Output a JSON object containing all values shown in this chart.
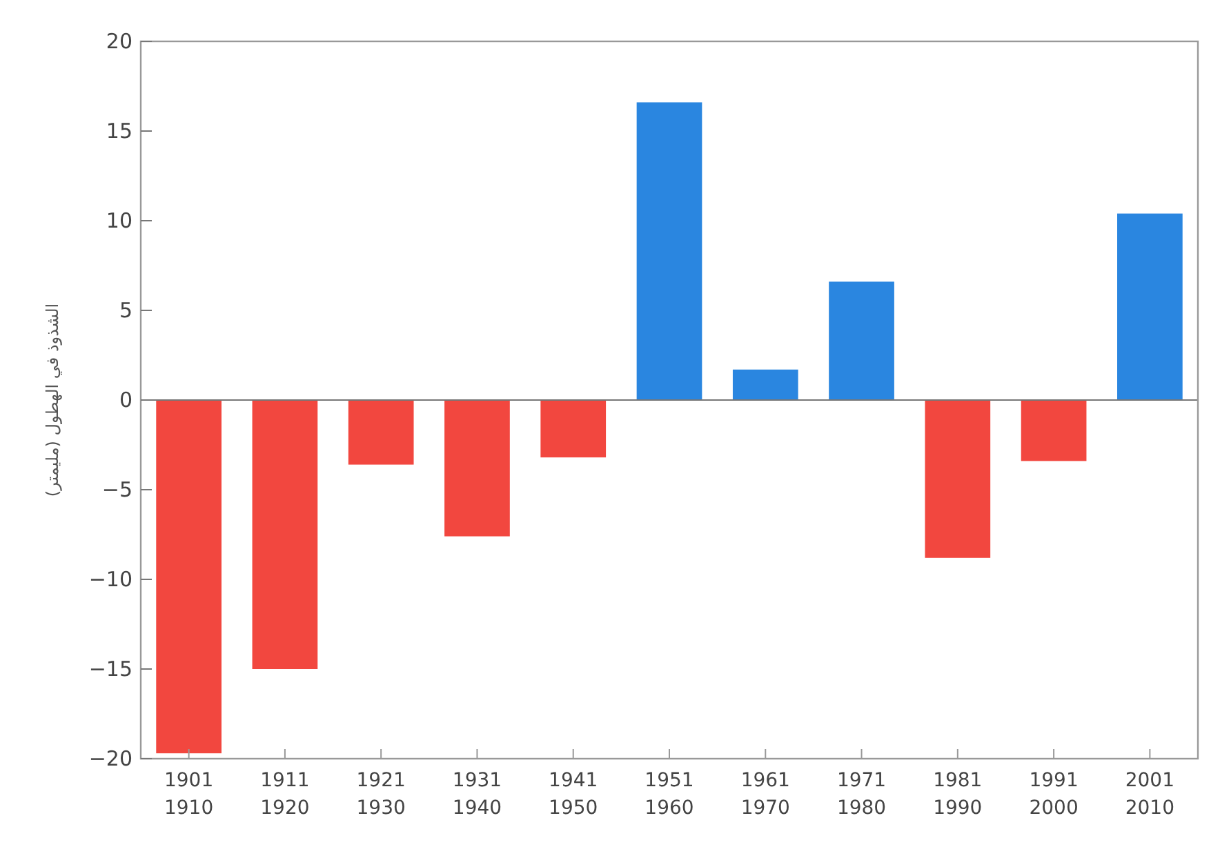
{
  "chart_data": {
    "type": "bar",
    "ylabel": "الشذوذ في الهطول (مليمتر)",
    "categories": [
      "1901\n1910",
      "1911\n1920",
      "1921\n1930",
      "1931\n1940",
      "1941\n1950",
      "1951\n1960",
      "1961\n1970",
      "1971\n1980",
      "1981\n1990",
      "1991\n2000",
      "2001\n2010"
    ],
    "values": [
      -19.7,
      -15,
      -3.6,
      -7.6,
      -3.2,
      16.6,
      1.7,
      6.6,
      -8.8,
      -3.4,
      10.4
    ],
    "colors": [
      "#f2473f",
      "#f2473f",
      "#f2473f",
      "#f2473f",
      "#f2473f",
      "#2a86e0",
      "#2a86e0",
      "#2a86e0",
      "#f2473f",
      "#f2473f",
      "#2a86e0"
    ],
    "ylim": [
      -20,
      20
    ],
    "yticks": [
      -20,
      -15,
      -10,
      -5,
      0,
      5,
      10,
      15,
      20
    ]
  }
}
